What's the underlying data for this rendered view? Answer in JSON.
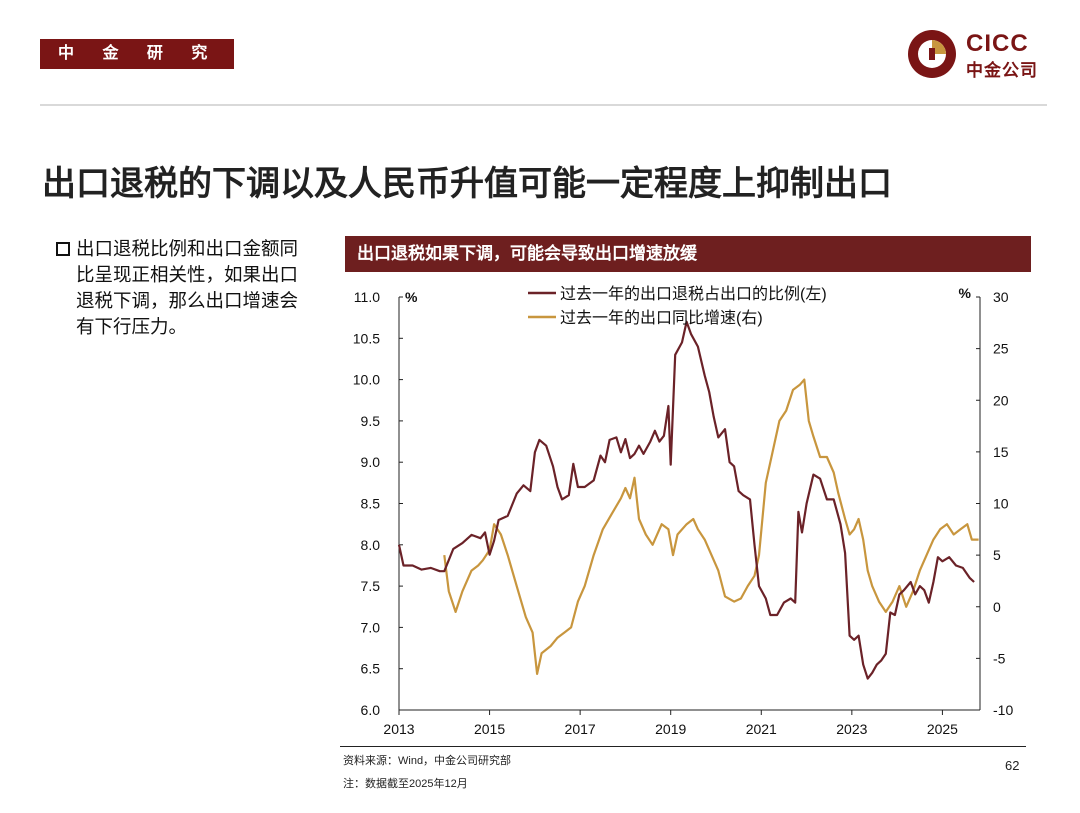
{
  "header": {
    "dept_tag": "中 金 研 究 部",
    "logo_en": "CICC",
    "logo_zh": "中金公司"
  },
  "title": "出口退税的下调以及人民币升值可能一定程度上抑制出口",
  "bullet": "出口退税比例和出口金额同比呈现正相关性，如果出口退税下调，那么出口增速会有下行压力。",
  "chart_header": "出口退税如果下调，可能会导致出口增速放缓",
  "footer": {
    "source": "资料来源：Wind，中金公司研究部",
    "note": "注：数据截至2025年12月",
    "page": "62"
  },
  "colors": {
    "brand": "#7a1515",
    "chart_header_bg": "#6e1f1f",
    "series_left": "#6b2228",
    "series_right": "#c8963e"
  },
  "chart_data": {
    "type": "line",
    "x_unit": "year",
    "x_range": [
      2013,
      2025.83
    ],
    "x_ticks": [
      2013,
      2015,
      2017,
      2019,
      2021,
      2023,
      2025
    ],
    "left_axis": {
      "label": "%",
      "range": [
        6.0,
        11.0
      ],
      "ticks": [
        6.0,
        6.5,
        7.0,
        7.5,
        8.0,
        8.5,
        9.0,
        9.5,
        10.0,
        10.5,
        11.0
      ]
    },
    "right_axis": {
      "label": "%",
      "range": [
        -10,
        30
      ],
      "ticks": [
        -10,
        -5,
        0,
        5,
        10,
        15,
        20,
        25,
        30
      ]
    },
    "legend_position": "top",
    "series": [
      {
        "name": "过去一年的出口退税占出口的比例(左)",
        "axis": "left",
        "color": "#6b2228",
        "points": [
          [
            2013.0,
            8.0
          ],
          [
            2013.1,
            7.75
          ],
          [
            2013.3,
            7.75
          ],
          [
            2013.5,
            7.7
          ],
          [
            2013.7,
            7.72
          ],
          [
            2013.9,
            7.68
          ],
          [
            2014.0,
            7.68
          ],
          [
            2014.2,
            7.95
          ],
          [
            2014.4,
            8.02
          ],
          [
            2014.6,
            8.12
          ],
          [
            2014.8,
            8.08
          ],
          [
            2014.9,
            8.15
          ],
          [
            2015.0,
            7.88
          ],
          [
            2015.1,
            8.05
          ],
          [
            2015.2,
            8.3
          ],
          [
            2015.4,
            8.35
          ],
          [
            2015.6,
            8.62
          ],
          [
            2015.75,
            8.72
          ],
          [
            2015.9,
            8.65
          ],
          [
            2016.0,
            9.12
          ],
          [
            2016.1,
            9.27
          ],
          [
            2016.25,
            9.2
          ],
          [
            2016.4,
            8.95
          ],
          [
            2016.5,
            8.7
          ],
          [
            2016.6,
            8.55
          ],
          [
            2016.75,
            8.6
          ],
          [
            2016.85,
            8.98
          ],
          [
            2016.95,
            8.7
          ],
          [
            2017.1,
            8.7
          ],
          [
            2017.3,
            8.78
          ],
          [
            2017.45,
            9.08
          ],
          [
            2017.55,
            9.0
          ],
          [
            2017.65,
            9.27
          ],
          [
            2017.8,
            9.3
          ],
          [
            2017.9,
            9.12
          ],
          [
            2018.0,
            9.28
          ],
          [
            2018.1,
            9.05
          ],
          [
            2018.2,
            9.1
          ],
          [
            2018.3,
            9.2
          ],
          [
            2018.4,
            9.1
          ],
          [
            2018.55,
            9.25
          ],
          [
            2018.65,
            9.38
          ],
          [
            2018.75,
            9.25
          ],
          [
            2018.85,
            9.32
          ],
          [
            2018.95,
            9.68
          ],
          [
            2019.0,
            8.97
          ],
          [
            2019.1,
            10.3
          ],
          [
            2019.25,
            10.45
          ],
          [
            2019.35,
            10.7
          ],
          [
            2019.45,
            10.55
          ],
          [
            2019.6,
            10.4
          ],
          [
            2019.75,
            10.05
          ],
          [
            2019.85,
            9.85
          ],
          [
            2019.95,
            9.55
          ],
          [
            2020.05,
            9.3
          ],
          [
            2020.2,
            9.4
          ],
          [
            2020.3,
            9.0
          ],
          [
            2020.4,
            8.95
          ],
          [
            2020.5,
            8.65
          ],
          [
            2020.6,
            8.6
          ],
          [
            2020.75,
            8.55
          ],
          [
            2020.85,
            8.0
          ],
          [
            2020.95,
            7.5
          ],
          [
            2021.1,
            7.35
          ],
          [
            2021.2,
            7.15
          ],
          [
            2021.35,
            7.15
          ],
          [
            2021.5,
            7.3
          ],
          [
            2021.65,
            7.35
          ],
          [
            2021.75,
            7.3
          ],
          [
            2021.82,
            8.4
          ],
          [
            2021.9,
            8.15
          ],
          [
            2022.0,
            8.5
          ],
          [
            2022.15,
            8.85
          ],
          [
            2022.3,
            8.8
          ],
          [
            2022.45,
            8.55
          ],
          [
            2022.6,
            8.55
          ],
          [
            2022.75,
            8.25
          ],
          [
            2022.85,
            7.9
          ],
          [
            2022.95,
            6.9
          ],
          [
            2023.05,
            6.85
          ],
          [
            2023.15,
            6.9
          ],
          [
            2023.25,
            6.55
          ],
          [
            2023.35,
            6.38
          ],
          [
            2023.45,
            6.45
          ],
          [
            2023.55,
            6.55
          ],
          [
            2023.65,
            6.6
          ],
          [
            2023.75,
            6.68
          ],
          [
            2023.85,
            7.18
          ],
          [
            2023.95,
            7.15
          ],
          [
            2024.05,
            7.4
          ],
          [
            2024.15,
            7.45
          ],
          [
            2024.3,
            7.55
          ],
          [
            2024.4,
            7.4
          ],
          [
            2024.5,
            7.5
          ],
          [
            2024.6,
            7.45
          ],
          [
            2024.7,
            7.3
          ],
          [
            2024.8,
            7.55
          ],
          [
            2024.9,
            7.85
          ],
          [
            2025.0,
            7.8
          ],
          [
            2025.15,
            7.85
          ],
          [
            2025.3,
            7.75
          ],
          [
            2025.45,
            7.72
          ],
          [
            2025.6,
            7.6
          ],
          [
            2025.7,
            7.55
          ]
        ]
      },
      {
        "name": "过去一年的出口同比增速(右)",
        "axis": "right",
        "color": "#c8963e",
        "points": [
          [
            2014.0,
            5.0
          ],
          [
            2014.1,
            1.5
          ],
          [
            2014.25,
            -0.5
          ],
          [
            2014.4,
            1.5
          ],
          [
            2014.6,
            3.5
          ],
          [
            2014.75,
            4.0
          ],
          [
            2014.85,
            4.5
          ],
          [
            2015.0,
            5.5
          ],
          [
            2015.1,
            8.0
          ],
          [
            2015.25,
            7.0
          ],
          [
            2015.4,
            5.0
          ],
          [
            2015.6,
            2.0
          ],
          [
            2015.8,
            -1.0
          ],
          [
            2015.95,
            -2.5
          ],
          [
            2016.05,
            -6.5
          ],
          [
            2016.15,
            -4.5
          ],
          [
            2016.35,
            -3.8
          ],
          [
            2016.5,
            -3.0
          ],
          [
            2016.65,
            -2.5
          ],
          [
            2016.8,
            -2.0
          ],
          [
            2016.95,
            0.5
          ],
          [
            2017.1,
            2.0
          ],
          [
            2017.3,
            5.0
          ],
          [
            2017.5,
            7.5
          ],
          [
            2017.7,
            9.0
          ],
          [
            2017.9,
            10.5
          ],
          [
            2018.0,
            11.5
          ],
          [
            2018.1,
            10.5
          ],
          [
            2018.2,
            12.5
          ],
          [
            2018.3,
            8.5
          ],
          [
            2018.45,
            7.0
          ],
          [
            2018.6,
            6.0
          ],
          [
            2018.8,
            8.0
          ],
          [
            2018.95,
            7.5
          ],
          [
            2019.05,
            5.0
          ],
          [
            2019.15,
            7.0
          ],
          [
            2019.35,
            8.0
          ],
          [
            2019.5,
            8.5
          ],
          [
            2019.6,
            7.5
          ],
          [
            2019.75,
            6.5
          ],
          [
            2019.9,
            5.0
          ],
          [
            2020.05,
            3.5
          ],
          [
            2020.2,
            1.0
          ],
          [
            2020.4,
            0.5
          ],
          [
            2020.55,
            0.8
          ],
          [
            2020.7,
            2.0
          ],
          [
            2020.85,
            3.0
          ],
          [
            2020.95,
            5.0
          ],
          [
            2021.1,
            12.0
          ],
          [
            2021.25,
            15.0
          ],
          [
            2021.4,
            18.0
          ],
          [
            2021.55,
            19.0
          ],
          [
            2021.7,
            21.0
          ],
          [
            2021.85,
            21.5
          ],
          [
            2021.95,
            22.0
          ],
          [
            2022.05,
            18.0
          ],
          [
            2022.15,
            16.5
          ],
          [
            2022.3,
            14.5
          ],
          [
            2022.45,
            14.5
          ],
          [
            2022.6,
            13.0
          ],
          [
            2022.7,
            11.0
          ],
          [
            2022.85,
            8.5
          ],
          [
            2022.95,
            7.0
          ],
          [
            2023.05,
            7.5
          ],
          [
            2023.15,
            8.5
          ],
          [
            2023.25,
            6.5
          ],
          [
            2023.35,
            3.5
          ],
          [
            2023.45,
            2.0
          ],
          [
            2023.6,
            0.5
          ],
          [
            2023.75,
            -0.5
          ],
          [
            2023.9,
            0.5
          ],
          [
            2024.05,
            2.0
          ],
          [
            2024.2,
            0.0
          ],
          [
            2024.35,
            1.5
          ],
          [
            2024.5,
            3.5
          ],
          [
            2024.65,
            5.0
          ],
          [
            2024.8,
            6.5
          ],
          [
            2024.95,
            7.5
          ],
          [
            2025.1,
            8.0
          ],
          [
            2025.25,
            7.0
          ],
          [
            2025.4,
            7.5
          ],
          [
            2025.55,
            8.0
          ],
          [
            2025.65,
            6.5
          ],
          [
            2025.8,
            6.5
          ]
        ]
      }
    ]
  }
}
